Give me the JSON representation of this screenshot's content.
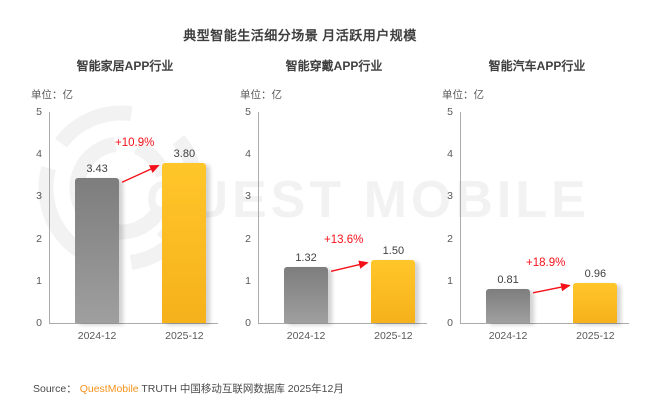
{
  "title": "典型智能生活细分场景 月活跃用户规模",
  "watermark": {
    "text": "QUEST MOBILE"
  },
  "source": {
    "label": "Source：",
    "brand": "QuestMobile",
    "rest": " TRUTH 中国移动互联网数据库 2025年12月"
  },
  "colors": {
    "title_text": "#3F3F3F",
    "tick_text": "#595959",
    "value_text": "#3F3F3F",
    "axis_line": "#ABABAB",
    "bar_prev_top": "#7D7D7D",
    "bar_prev_bottom": "#9F9F9F",
    "bar_curr_top": "#FFC62A",
    "bar_curr_bottom": "#F6B11B",
    "growth_red": "#F5111A",
    "brand_orange": "#F7941E",
    "watermark_gray": "#F2F2F2"
  },
  "chart_data": [
    {
      "type": "bar",
      "title": "智能家居APP行业",
      "unit_label": "单位：亿",
      "categories": [
        "2024-12",
        "2025-12"
      ],
      "values": [
        3.43,
        3.8
      ],
      "value_labels": [
        "3.43",
        "3.80"
      ],
      "growth_label": "+10.9%",
      "ylabel": "亿",
      "ylim": [
        0,
        5
      ],
      "yticks": [
        0,
        1,
        2,
        3,
        4,
        5
      ],
      "grid": false,
      "legend": false
    },
    {
      "type": "bar",
      "title": "智能穿戴APP行业",
      "unit_label": "单位：亿",
      "categories": [
        "2024-12",
        "2025-12"
      ],
      "values": [
        1.32,
        1.5
      ],
      "value_labels": [
        "1.32",
        "1.50"
      ],
      "growth_label": "+13.6%",
      "ylabel": "亿",
      "ylim": [
        0,
        5
      ],
      "yticks": [
        0,
        1,
        2,
        3,
        4,
        5
      ],
      "grid": false,
      "legend": false
    },
    {
      "type": "bar",
      "title": "智能汽车APP行业",
      "unit_label": "单位：亿",
      "categories": [
        "2024-12",
        "2025-12"
      ],
      "values": [
        0.81,
        0.96
      ],
      "value_labels": [
        "0.81",
        "0.96"
      ],
      "growth_label": "+18.9%",
      "ylabel": "亿",
      "ylim": [
        0,
        5
      ],
      "yticks": [
        0,
        1,
        2,
        3,
        4,
        5
      ],
      "grid": false,
      "legend": false
    }
  ]
}
